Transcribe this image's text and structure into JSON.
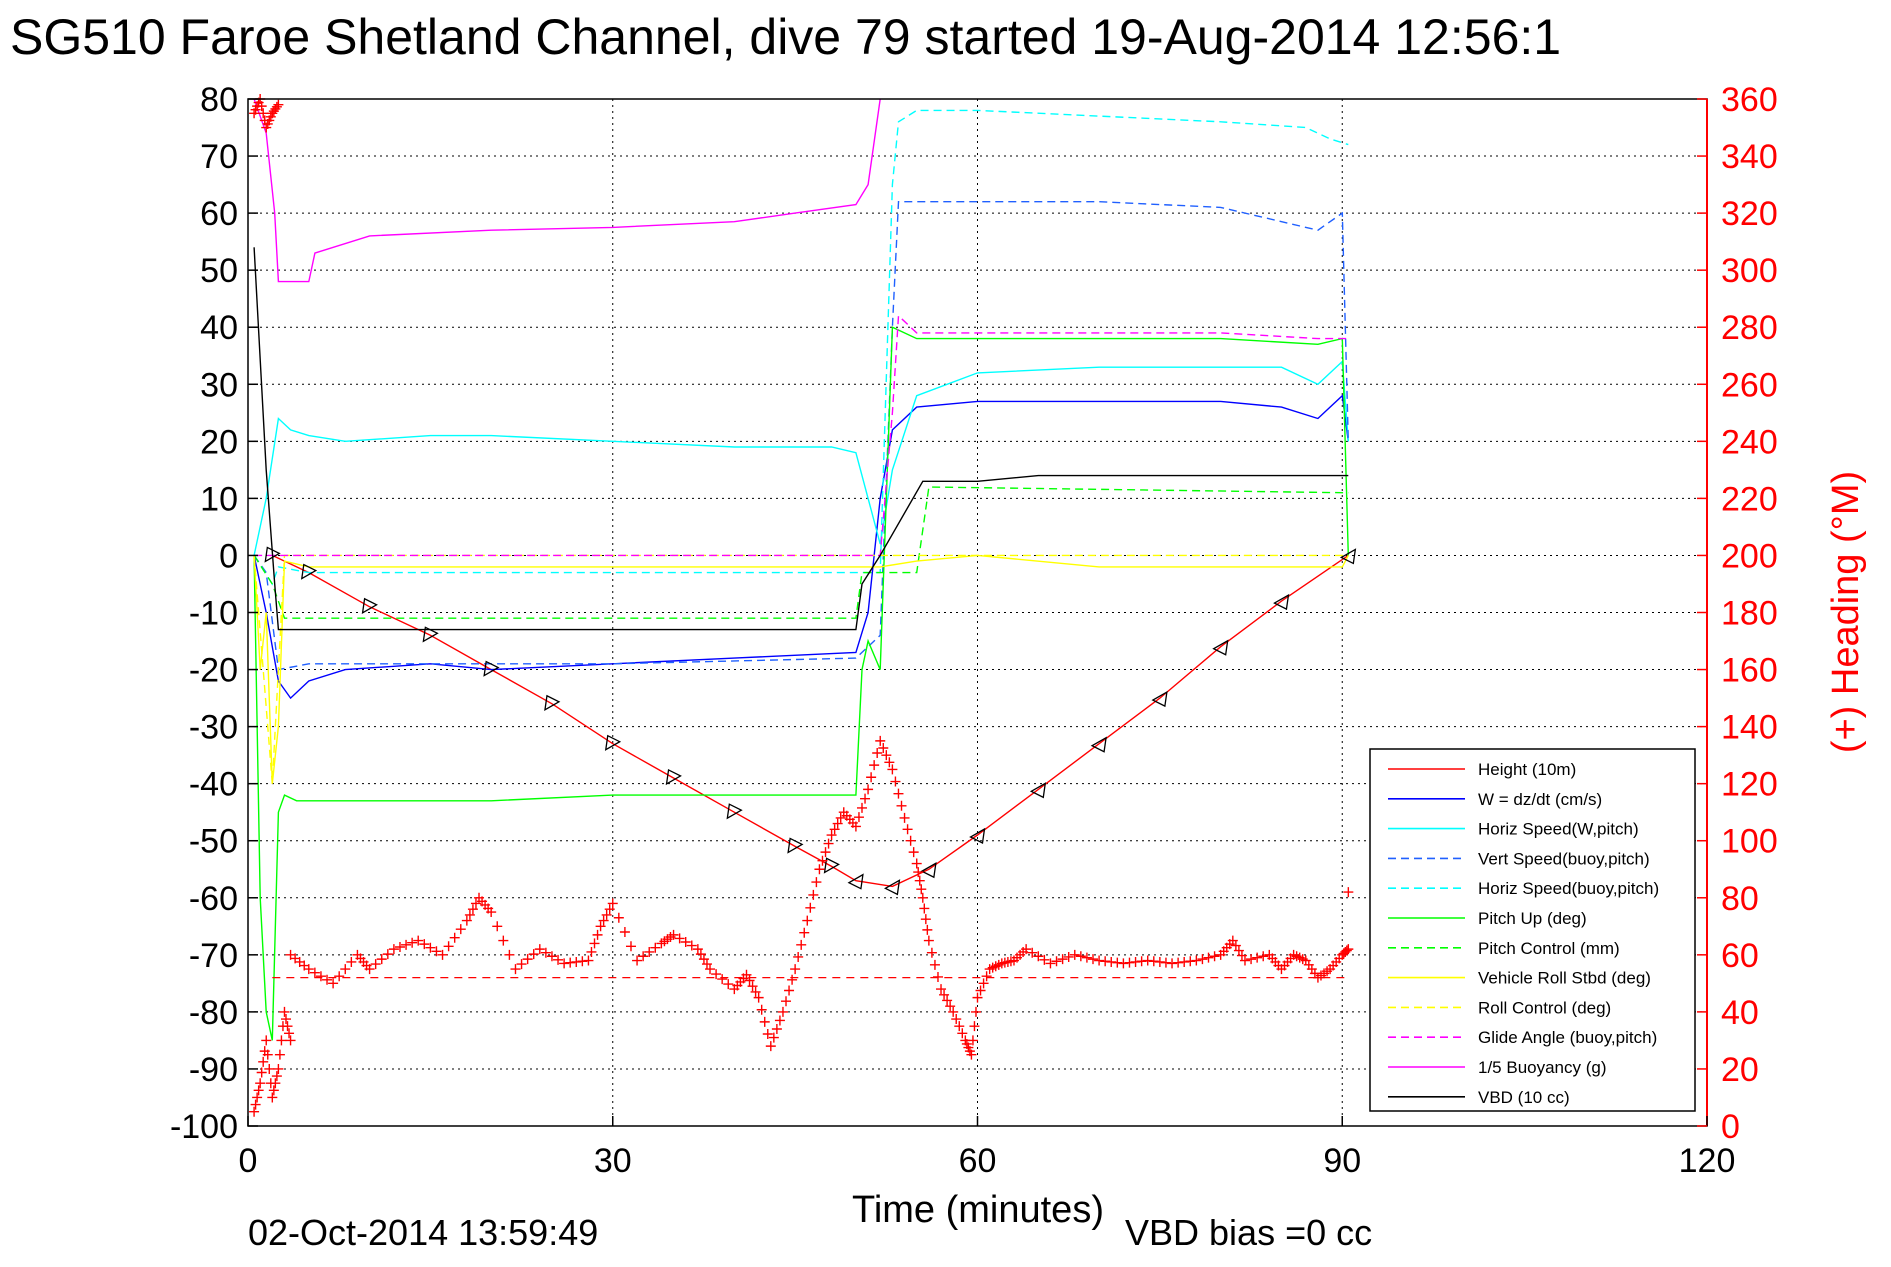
{
  "chart_data": {
    "type": "line",
    "title": "SG510 Faroe Shetland Channel, dive 79 started 19-Aug-2014 12:56:1",
    "xlabel": "Time (minutes)",
    "ylabel": "",
    "y2label": "(+) Heading (°M)",
    "timestamp": "02-Oct-2014 13:59:49",
    "footer": "VBD bias =0 cc",
    "xlim": [
      0,
      120
    ],
    "ylim": [
      -100,
      80
    ],
    "y2lim": [
      0,
      360
    ],
    "xticks": [
      0,
      30,
      60,
      90,
      120
    ],
    "yticks": [
      80,
      70,
      60,
      50,
      40,
      30,
      20,
      10,
      0,
      -10,
      -20,
      -30,
      -40,
      -50,
      -60,
      -70,
      -80,
      -90,
      -100
    ],
    "y2ticks": [
      360,
      340,
      320,
      300,
      280,
      260,
      240,
      220,
      200,
      180,
      160,
      140,
      120,
      100,
      80,
      60,
      40,
      20,
      0
    ],
    "grid": true,
    "legend_position": "bottom-right",
    "colors": {
      "red": "#ff0000",
      "blue": "#0000ff",
      "cyan": "#00ffff",
      "green": "#00ff00",
      "yellow": "#ffff00",
      "magenta": "#ff00ff",
      "black": "#000000"
    },
    "series": [
      {
        "name": "Height (10m)",
        "color": "#ff0000",
        "style": "solid",
        "axis": "left",
        "x": [
          2,
          5,
          10,
          15,
          20,
          25,
          30,
          35,
          40,
          45,
          48,
          50,
          53,
          56,
          60,
          65,
          70,
          75,
          80,
          85,
          90.5
        ],
        "y": [
          0,
          -3,
          -9,
          -14,
          -20,
          -26,
          -33,
          -39,
          -45,
          -51,
          -54.5,
          -57,
          -58,
          -55,
          -49,
          -41,
          -33,
          -25,
          -16,
          -8,
          0
        ]
      },
      {
        "name": "W = dz/dt (cm/s)",
        "color": "#0000ff",
        "style": "solid",
        "axis": "left",
        "x": [
          0.5,
          1.5,
          2.5,
          3.5,
          5,
          8,
          15,
          20,
          30,
          40,
          50,
          51,
          52,
          53,
          55,
          60,
          65,
          70,
          80,
          85,
          88,
          90,
          90.5
        ],
        "y": [
          0,
          -10,
          -22,
          -25,
          -22,
          -20,
          -19,
          -20,
          -19,
          -18,
          -17,
          -10,
          10,
          22,
          26,
          27,
          27,
          27,
          27,
          26,
          24,
          28,
          20
        ]
      },
      {
        "name": "Horiz Speed(W,pitch)",
        "color": "#00ffff",
        "style": "solid",
        "axis": "left",
        "x": [
          0.5,
          1.5,
          2.5,
          3.5,
          5,
          8,
          15,
          20,
          30,
          40,
          48,
          50,
          51,
          52,
          53,
          55,
          60,
          70,
          80,
          85,
          88,
          90,
          90.5
        ],
        "y": [
          0,
          10,
          24,
          22,
          21,
          20,
          21,
          21,
          20,
          19,
          19,
          18,
          10,
          2,
          15,
          28,
          32,
          33,
          33,
          33,
          30,
          34,
          20
        ]
      },
      {
        "name": "Vert Speed(buoy,pitch)",
        "color": "#2060ff",
        "style": "dashed",
        "axis": "left",
        "x": [
          0.5,
          1.5,
          2.5,
          5,
          30,
          50,
          52,
          53,
          53.5,
          55,
          60,
          70,
          80,
          88,
          90,
          90.5
        ],
        "y": [
          0,
          -3,
          -20,
          -19,
          -19,
          -18,
          -14,
          40,
          62,
          62,
          62,
          62,
          61,
          57,
          60,
          20
        ]
      },
      {
        "name": "Horiz Speed(buoy,pitch)",
        "color": "#00ffff",
        "style": "dashed",
        "axis": "left",
        "x": [
          0.5,
          2,
          2.5,
          5,
          30,
          50,
          52,
          53,
          53.5,
          55,
          60,
          70,
          80,
          87,
          89,
          90.5
        ],
        "y": [
          0,
          -5,
          -2,
          -3,
          -3,
          -3,
          -3,
          65,
          76,
          78,
          78,
          77,
          76,
          75,
          73,
          72
        ]
      },
      {
        "name": "Pitch Up (deg)",
        "color": "#00ff00",
        "style": "solid",
        "axis": "left",
        "x": [
          0.5,
          1,
          1.5,
          2,
          2.5,
          3,
          4,
          6,
          10,
          20,
          30,
          40,
          50,
          50.5,
          51,
          52,
          53,
          55,
          60,
          70,
          80,
          88,
          90,
          90.5
        ],
        "y": [
          0,
          -60,
          -80,
          -85,
          -45,
          -42,
          -43,
          -43,
          -43,
          -43,
          -42,
          -42,
          -42,
          -20,
          -15,
          -20,
          40,
          38,
          38,
          38,
          38,
          37,
          38,
          0
        ]
      },
      {
        "name": "Pitch Control (mm)",
        "color": "#00ff00",
        "style": "dashed",
        "axis": "left",
        "x": [
          0.5,
          2,
          3,
          50,
          50.5,
          55,
          56,
          90,
          90.5
        ],
        "y": [
          0,
          -5,
          -11,
          -11,
          -3,
          -3,
          12,
          11,
          11
        ]
      },
      {
        "name": "Vehicle Roll Stbd (deg)",
        "color": "#ffff00",
        "style": "solid",
        "axis": "left",
        "x": [
          0.5,
          1,
          1.5,
          2,
          2.5,
          3,
          5,
          10,
          20,
          30,
          40,
          50,
          52,
          55,
          60,
          70,
          80,
          90,
          90.5
        ],
        "y": [
          0,
          -20,
          -10,
          -40,
          -30,
          -1,
          -2,
          -2,
          -2,
          -2,
          -2,
          -2,
          -2,
          -1,
          0,
          -2,
          -2,
          -2,
          0
        ]
      },
      {
        "name": "Roll Control (deg)",
        "color": "#ffff00",
        "style": "dashed",
        "axis": "left",
        "x": [
          0.5,
          2,
          3,
          50,
          50.5,
          90.5
        ],
        "y": [
          0,
          -40,
          0,
          0,
          0,
          0
        ]
      },
      {
        "name": "Glide Angle (buoy,pitch)",
        "color": "#ff00ff",
        "style": "dashed",
        "axis": "left",
        "x": [
          0.5,
          5,
          30,
          50,
          52,
          53,
          53.5,
          55,
          60,
          70,
          80,
          88,
          90.5
        ],
        "y": [
          0,
          0,
          0,
          0,
          0,
          25,
          42,
          39,
          39,
          39,
          39,
          38,
          38
        ]
      },
      {
        "name": "1/5 Buoyancy (g)",
        "color": "#ff00ff",
        "style": "solid",
        "axis": "left",
        "x": [
          0.5,
          1.5,
          2.2,
          2.5,
          5,
          5.5,
          10,
          20,
          30,
          40,
          45,
          50,
          51,
          52
        ],
        "y": [
          80,
          74,
          60,
          48,
          48,
          53,
          56,
          57,
          57.5,
          58.5,
          60,
          61.5,
          65,
          80
        ]
      },
      {
        "name": "VBD (10 cc)",
        "color": "#000000",
        "style": "solid",
        "axis": "left",
        "x": [
          0.5,
          1.5,
          2.2,
          2.5,
          5,
          50,
          50.5,
          52,
          55.5,
          60,
          65,
          90.5
        ],
        "y": [
          54,
          15,
          -5,
          -13,
          -13,
          -13,
          -5,
          0,
          13,
          13,
          14,
          14
        ]
      }
    ],
    "heading": {
      "name": "Heading (+)",
      "color": "#ff0000",
      "marker": "+",
      "axis": "right",
      "mean": 52,
      "segments": [
        {
          "x": [
            0.5,
            1,
            1.5,
            2,
            2.5,
            3,
            3.5
          ],
          "y": [
            5,
            15,
            30,
            10,
            20,
            40,
            30
          ]
        },
        {
          "x": [
            0.5,
            1,
            1.5,
            2,
            2.5
          ],
          "y": [
            355,
            360,
            350,
            355,
            358
          ]
        },
        {
          "x": [
            3.5,
            5,
            7,
            9,
            10,
            12,
            14,
            16,
            18,
            19,
            20,
            22,
            24,
            26,
            28,
            29,
            30,
            32,
            34,
            35,
            37,
            38,
            40,
            41,
            42,
            43,
            44,
            45,
            46,
            47,
            48,
            49,
            50,
            51,
            52,
            53,
            54,
            55,
            55.5,
            56,
            57,
            58,
            59,
            59.5,
            60,
            61,
            62,
            63,
            64,
            66,
            68,
            70,
            72,
            74,
            76,
            78,
            80,
            81,
            82,
            84,
            85,
            86,
            87,
            88,
            89,
            90,
            90.5
          ],
          "y": [
            60,
            55,
            50,
            60,
            55,
            62,
            65,
            60,
            72,
            80,
            75,
            55,
            62,
            57,
            58,
            70,
            78,
            58,
            64,
            67,
            62,
            55,
            48,
            53,
            45,
            28,
            40,
            55,
            72,
            90,
            102,
            110,
            105,
            118,
            135,
            125,
            108,
            92,
            80,
            65,
            48,
            40,
            30,
            25,
            45,
            55,
            57,
            58,
            62,
            57,
            60,
            58,
            57,
            58,
            57,
            58,
            60,
            65,
            58,
            60,
            55,
            60,
            58,
            52,
            55,
            60,
            62
          ]
        },
        {
          "x": [
            90.5
          ],
          "y": [
            82
          ]
        }
      ]
    }
  }
}
